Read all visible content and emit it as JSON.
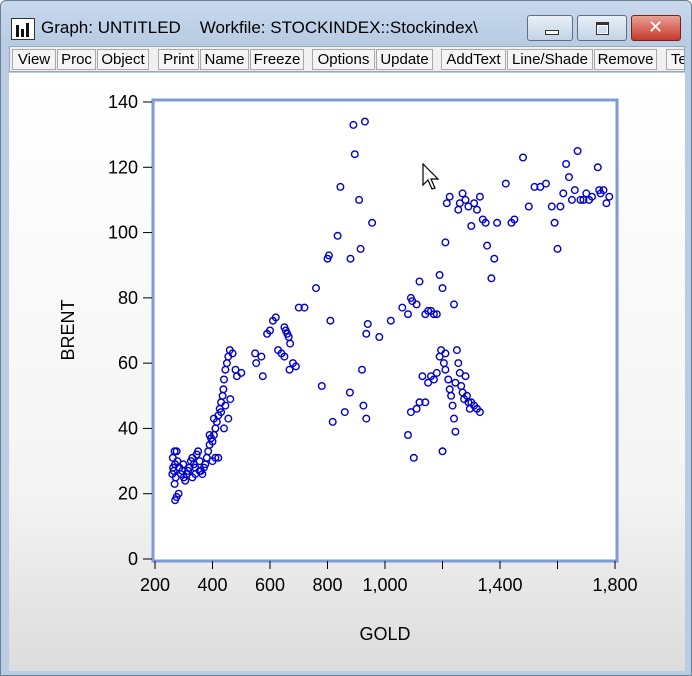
{
  "window": {
    "title": "Graph: UNTITLED    Workfile: STOCKINDEX::Stockindex\\"
  },
  "toolbar": {
    "buttons": [
      "View",
      "Proc",
      "Object",
      "Print",
      "Name",
      "Freeze",
      "Options",
      "Update",
      "AddText",
      "Line/Shade",
      "Remove",
      "Te"
    ]
  },
  "chart_data": {
    "type": "scatter",
    "xlabel": "GOLD",
    "ylabel": "BRENT",
    "xlim": [
      200,
      1800
    ],
    "ylim": [
      0,
      140
    ],
    "xticks": [
      200,
      400,
      600,
      800,
      1000,
      1200,
      1400,
      1600,
      1800
    ],
    "xtick_labels": [
      "200",
      "400",
      "600",
      "800",
      "1,000",
      "",
      "1,400",
      "",
      "1,800"
    ],
    "yticks": [
      0,
      20,
      40,
      60,
      80,
      100,
      120,
      140
    ],
    "ytick_labels": [
      "0",
      "20",
      "40",
      "60",
      "80",
      "100",
      "120",
      "140"
    ],
    "marker_color": "#0000cc",
    "points": [
      [
        270,
        18
      ],
      [
        275,
        19
      ],
      [
        282,
        20
      ],
      [
        268,
        23
      ],
      [
        272,
        25
      ],
      [
        260,
        26
      ],
      [
        265,
        27
      ],
      [
        263,
        28
      ],
      [
        270,
        29
      ],
      [
        278,
        30
      ],
      [
        262,
        31
      ],
      [
        268,
        33
      ],
      [
        275,
        33
      ],
      [
        285,
        28
      ],
      [
        290,
        26
      ],
      [
        295,
        27
      ],
      [
        300,
        25
      ],
      [
        305,
        24
      ],
      [
        310,
        26
      ],
      [
        315,
        27
      ],
      [
        298,
        29
      ],
      [
        320,
        28
      ],
      [
        325,
        30
      ],
      [
        330,
        31
      ],
      [
        335,
        29
      ],
      [
        340,
        28
      ],
      [
        345,
        32
      ],
      [
        350,
        33
      ],
      [
        355,
        30
      ],
      [
        360,
        27
      ],
      [
        365,
        26
      ],
      [
        370,
        28
      ],
      [
        375,
        29
      ],
      [
        380,
        31
      ],
      [
        385,
        33
      ],
      [
        390,
        35
      ],
      [
        395,
        37
      ],
      [
        400,
        36
      ],
      [
        405,
        38
      ],
      [
        410,
        40
      ],
      [
        415,
        42
      ],
      [
        420,
        44
      ],
      [
        425,
        46
      ],
      [
        430,
        48
      ],
      [
        435,
        50
      ],
      [
        438,
        52
      ],
      [
        440,
        55
      ],
      [
        445,
        58
      ],
      [
        450,
        60
      ],
      [
        455,
        62
      ],
      [
        460,
        64
      ],
      [
        470,
        63
      ],
      [
        480,
        58
      ],
      [
        485,
        56
      ],
      [
        500,
        57
      ],
      [
        330,
        25
      ],
      [
        340,
        26
      ],
      [
        355,
        27
      ],
      [
        390,
        38
      ],
      [
        400,
        30
      ],
      [
        410,
        31
      ],
      [
        420,
        31
      ],
      [
        430,
        45
      ],
      [
        440,
        40
      ],
      [
        405,
        43
      ],
      [
        445,
        47
      ],
      [
        455,
        43
      ],
      [
        462,
        49
      ],
      [
        548,
        63
      ],
      [
        552,
        60
      ],
      [
        570,
        62
      ],
      [
        575,
        56
      ],
      [
        590,
        69
      ],
      [
        600,
        70
      ],
      [
        610,
        73
      ],
      [
        620,
        74
      ],
      [
        628,
        64
      ],
      [
        640,
        63
      ],
      [
        650,
        71
      ],
      [
        655,
        70
      ],
      [
        660,
        69
      ],
      [
        665,
        68
      ],
      [
        670,
        66
      ],
      [
        680,
        60
      ],
      [
        690,
        59
      ],
      [
        650,
        62
      ],
      [
        668,
        58
      ],
      [
        700,
        77
      ],
      [
        720,
        77
      ],
      [
        760,
        83
      ],
      [
        780,
        53
      ],
      [
        800,
        92
      ],
      [
        805,
        93
      ],
      [
        810,
        73
      ],
      [
        818,
        42
      ],
      [
        835,
        99
      ],
      [
        845,
        114
      ],
      [
        860,
        45
      ],
      [
        878,
        51
      ],
      [
        880,
        92
      ],
      [
        890,
        133
      ],
      [
        895,
        124
      ],
      [
        910,
        110
      ],
      [
        915,
        95
      ],
      [
        920,
        58
      ],
      [
        925,
        47
      ],
      [
        935,
        69
      ],
      [
        935,
        43
      ],
      [
        940,
        72
      ],
      [
        955,
        103
      ],
      [
        930,
        134
      ],
      [
        980,
        68
      ],
      [
        1020,
        73
      ],
      [
        1060,
        77
      ],
      [
        1080,
        75
      ],
      [
        1090,
        80
      ],
      [
        1095,
        79
      ],
      [
        1110,
        78
      ],
      [
        1120,
        85
      ],
      [
        1140,
        75
      ],
      [
        1150,
        76
      ],
      [
        1160,
        76
      ],
      [
        1170,
        75
      ],
      [
        1180,
        75
      ],
      [
        1190,
        87
      ],
      [
        1200,
        83
      ],
      [
        1210,
        97
      ],
      [
        1215,
        109
      ],
      [
        1225,
        111
      ],
      [
        1240,
        78
      ],
      [
        1255,
        107
      ],
      [
        1260,
        109
      ],
      [
        1270,
        112
      ],
      [
        1280,
        110
      ],
      [
        1290,
        108
      ],
      [
        1300,
        102
      ],
      [
        1310,
        109
      ],
      [
        1320,
        107
      ],
      [
        1330,
        111
      ],
      [
        1340,
        104
      ],
      [
        1350,
        103
      ],
      [
        1355,
        96
      ],
      [
        1370,
        86
      ],
      [
        1380,
        92
      ],
      [
        1390,
        103
      ],
      [
        1420,
        115
      ],
      [
        1440,
        103
      ],
      [
        1450,
        104
      ],
      [
        1480,
        123
      ],
      [
        1500,
        108
      ],
      [
        1520,
        114
      ],
      [
        1540,
        114
      ],
      [
        1560,
        115
      ],
      [
        1580,
        108
      ],
      [
        1590,
        103
      ],
      [
        1600,
        95
      ],
      [
        1610,
        108
      ],
      [
        1620,
        112
      ],
      [
        1630,
        121
      ],
      [
        1640,
        117
      ],
      [
        1650,
        110
      ],
      [
        1660,
        113
      ],
      [
        1670,
        125
      ],
      [
        1680,
        110
      ],
      [
        1690,
        110
      ],
      [
        1700,
        112
      ],
      [
        1710,
        110
      ],
      [
        1720,
        111
      ],
      [
        1740,
        120
      ],
      [
        1745,
        113
      ],
      [
        1750,
        112
      ],
      [
        1760,
        113
      ],
      [
        1770,
        109
      ],
      [
        1780,
        111
      ],
      [
        1080,
        38
      ],
      [
        1090,
        45
      ],
      [
        1100,
        31
      ],
      [
        1110,
        46
      ],
      [
        1120,
        48
      ],
      [
        1130,
        56
      ],
      [
        1140,
        48
      ],
      [
        1150,
        54
      ],
      [
        1160,
        56
      ],
      [
        1170,
        55
      ],
      [
        1180,
        57
      ],
      [
        1190,
        62
      ],
      [
        1195,
        64
      ],
      [
        1200,
        33
      ],
      [
        1205,
        60
      ],
      [
        1210,
        58
      ],
      [
        1220,
        55
      ],
      [
        1225,
        52
      ],
      [
        1230,
        50
      ],
      [
        1235,
        47
      ],
      [
        1240,
        43
      ],
      [
        1245,
        39
      ],
      [
        1250,
        64
      ],
      [
        1255,
        60
      ],
      [
        1260,
        57
      ],
      [
        1265,
        53
      ],
      [
        1270,
        51
      ],
      [
        1275,
        49
      ],
      [
        1280,
        56
      ],
      [
        1285,
        50
      ],
      [
        1290,
        48
      ],
      [
        1295,
        46
      ],
      [
        1300,
        48
      ],
      [
        1310,
        47
      ],
      [
        1320,
        46
      ],
      [
        1330,
        45
      ],
      [
        1210,
        63
      ],
      [
        1245,
        54
      ]
    ]
  }
}
